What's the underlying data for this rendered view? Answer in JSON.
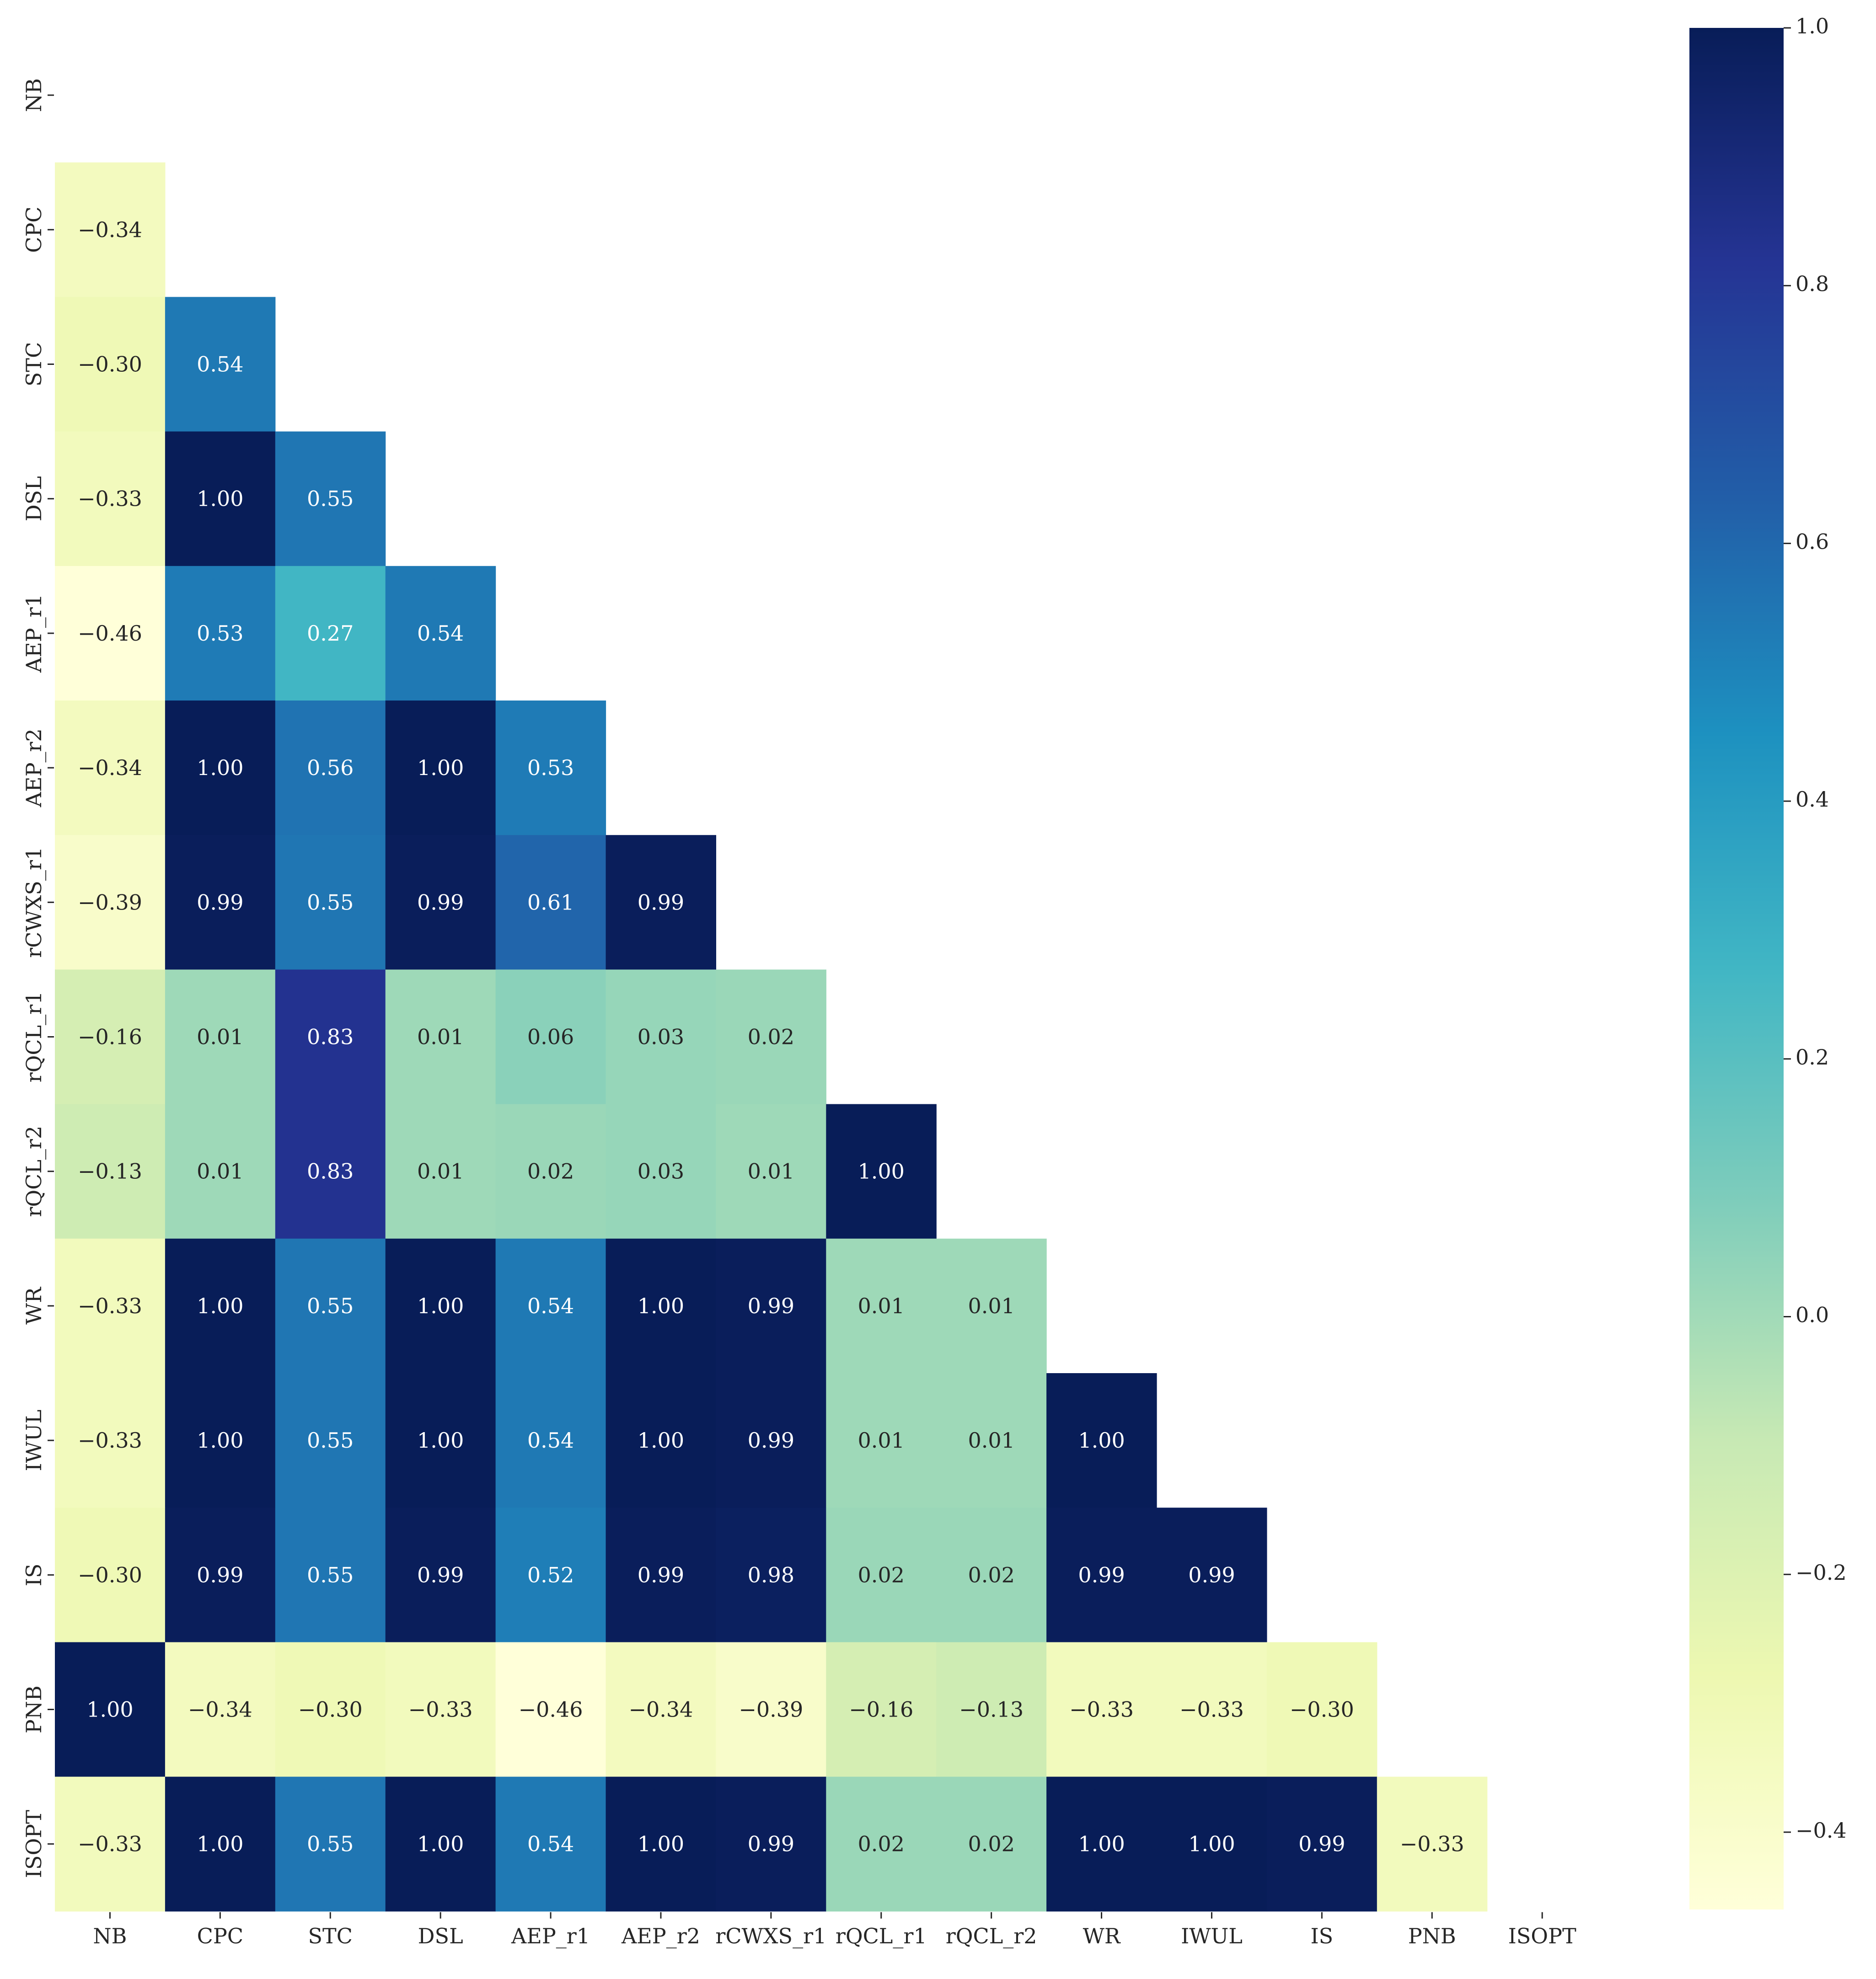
{
  "chart_data": {
    "type": "heatmap",
    "title": "",
    "xlabel": "",
    "ylabel": "",
    "variables": [
      "NB",
      "CPC",
      "STC",
      "DSL",
      "AEP_r1",
      "AEP_r2",
      "rCWXS_r1",
      "rQCL_r1",
      "rQCL_r2",
      "WR",
      "IWUL",
      "IS",
      "PNB",
      "ISOPT"
    ],
    "mask": "upper-triangle-including-diagonal",
    "rows": [
      [],
      [
        "−0.34"
      ],
      [
        "−0.30",
        "0.54"
      ],
      [
        "−0.33",
        "1.00",
        "0.55"
      ],
      [
        "−0.46",
        "0.53",
        "0.27",
        "0.54"
      ],
      [
        "−0.34",
        "1.00",
        "0.56",
        "1.00",
        "0.53"
      ],
      [
        "−0.39",
        "0.99",
        "0.55",
        "0.99",
        "0.61",
        "0.99"
      ],
      [
        "−0.16",
        "0.01",
        "0.83",
        "0.01",
        "0.06",
        "0.03",
        "0.02"
      ],
      [
        "−0.13",
        "0.01",
        "0.83",
        "0.01",
        "0.02",
        "0.03",
        "0.01",
        "1.00"
      ],
      [
        "−0.33",
        "1.00",
        "0.55",
        "1.00",
        "0.54",
        "1.00",
        "0.99",
        "0.01",
        "0.01"
      ],
      [
        "−0.33",
        "1.00",
        "0.55",
        "1.00",
        "0.54",
        "1.00",
        "0.99",
        "0.01",
        "0.01",
        "1.00"
      ],
      [
        "−0.30",
        "0.99",
        "0.55",
        "0.99",
        "0.52",
        "0.99",
        "0.98",
        "0.02",
        "0.02",
        "0.99",
        "0.99"
      ],
      [
        "1.00",
        "−0.34",
        "−0.30",
        "−0.33",
        "−0.46",
        "−0.34",
        "−0.39",
        "−0.16",
        "−0.13",
        "−0.33",
        "−0.33",
        "−0.30"
      ],
      [
        "−0.33",
        "1.00",
        "0.55",
        "1.00",
        "0.54",
        "1.00",
        "0.99",
        "0.02",
        "0.02",
        "1.00",
        "1.00",
        "0.99",
        "−0.33"
      ]
    ],
    "colorbar": {
      "colormap": "YlGnBu",
      "vmin": -0.46,
      "vmax": 1.0,
      "ticks": [
        -0.4,
        -0.2,
        0.0,
        0.2,
        0.4,
        0.6,
        0.8,
        1.0
      ],
      "tick_labels": [
        "−0.4",
        "−0.2",
        "0.0",
        "0.2",
        "0.4",
        "0.6",
        "0.8",
        "1.0"
      ],
      "stops": [
        "#ffffd9",
        "#edf8b1",
        "#c7e9b4",
        "#7fcdbb",
        "#41b6c4",
        "#1d91c0",
        "#225ea8",
        "#253494",
        "#081d58"
      ]
    },
    "grid": false,
    "legend_position": "right"
  }
}
